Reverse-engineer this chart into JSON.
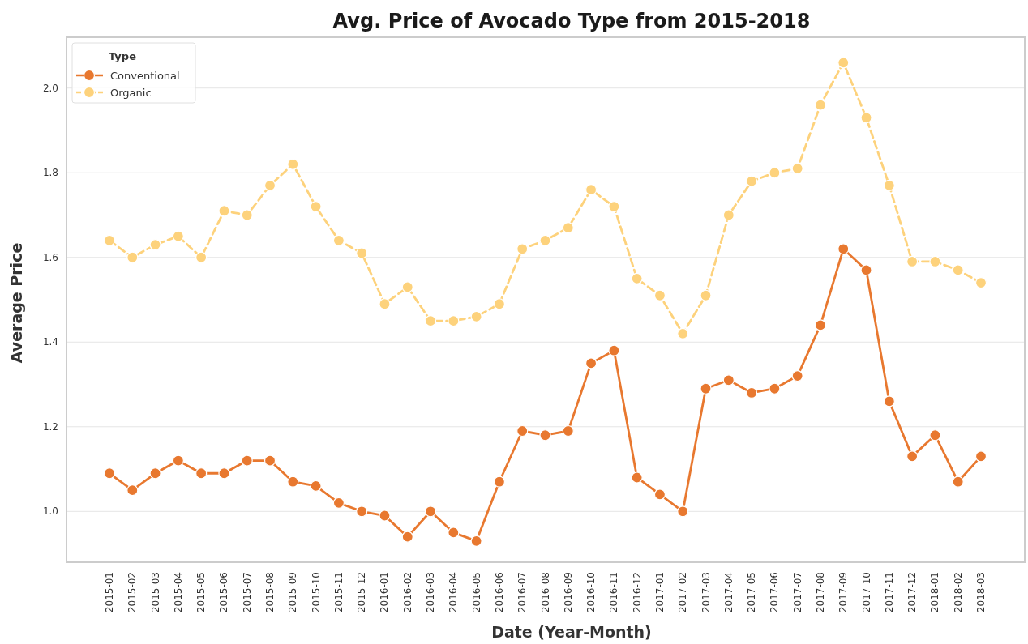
{
  "chart_data": {
    "type": "line",
    "title": "Avg. Price of Avocado Type from 2015-2018",
    "xlabel": "Date (Year-Month)",
    "ylabel": "Average Price",
    "legend_title": "Type",
    "categories": [
      "2015-01",
      "2015-02",
      "2015-03",
      "2015-04",
      "2015-05",
      "2015-06",
      "2015-07",
      "2015-08",
      "2015-09",
      "2015-10",
      "2015-11",
      "2015-12",
      "2016-01",
      "2016-02",
      "2016-03",
      "2016-04",
      "2016-05",
      "2016-06",
      "2016-07",
      "2016-08",
      "2016-09",
      "2016-10",
      "2016-11",
      "2016-12",
      "2017-01",
      "2017-02",
      "2017-03",
      "2017-04",
      "2017-05",
      "2017-06",
      "2017-07",
      "2017-08",
      "2017-09",
      "2017-10",
      "2017-11",
      "2017-12",
      "2018-01",
      "2018-02",
      "2018-03"
    ],
    "series": [
      {
        "name": "Conventional",
        "color": "#e8782f",
        "line_style": "solid",
        "values": [
          1.09,
          1.05,
          1.09,
          1.12,
          1.09,
          1.09,
          1.12,
          1.12,
          1.07,
          1.06,
          1.02,
          1.0,
          0.99,
          0.94,
          1.0,
          0.95,
          0.93,
          1.07,
          1.19,
          1.18,
          1.19,
          1.35,
          1.38,
          1.08,
          1.04,
          1.0,
          1.29,
          1.31,
          1.28,
          1.29,
          1.32,
          1.44,
          1.62,
          1.57,
          1.26,
          1.13,
          1.18,
          1.07,
          1.13
        ]
      },
      {
        "name": "Organic",
        "color": "#fdd27c",
        "line_style": "dashed",
        "values": [
          1.64,
          1.6,
          1.63,
          1.65,
          1.6,
          1.71,
          1.7,
          1.77,
          1.82,
          1.72,
          1.64,
          1.61,
          1.49,
          1.53,
          1.45,
          1.45,
          1.46,
          1.49,
          1.62,
          1.64,
          1.67,
          1.76,
          1.72,
          1.55,
          1.51,
          1.42,
          1.51,
          1.7,
          1.78,
          1.8,
          1.81,
          1.96,
          2.06,
          1.93,
          1.77,
          1.59,
          1.59,
          1.57,
          1.54
        ]
      }
    ],
    "ylim": [
      0.88,
      2.12
    ],
    "yticks": [
      {
        "value": 1,
        "label": "1.0"
      },
      {
        "value": 1.2,
        "label": "1.2"
      },
      {
        "value": 1.4,
        "label": "1.4"
      },
      {
        "value": 1.6,
        "label": "1.6"
      },
      {
        "value": 1.8,
        "label": "1.8"
      },
      {
        "value": 2,
        "label": "2.0"
      }
    ],
    "grid": "y",
    "legend": "top left",
    "marker": "circle"
  }
}
